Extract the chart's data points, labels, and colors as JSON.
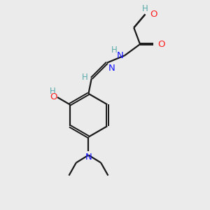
{
  "bg_color": "#ebebeb",
  "bond_color": "#1a1a1a",
  "N_color": "#1414ff",
  "O_color": "#ff2020",
  "H_color": "#5aabab",
  "figsize": [
    3.0,
    3.0
  ],
  "dpi": 100,
  "xlim": [
    0,
    10
  ],
  "ylim": [
    0,
    10
  ]
}
